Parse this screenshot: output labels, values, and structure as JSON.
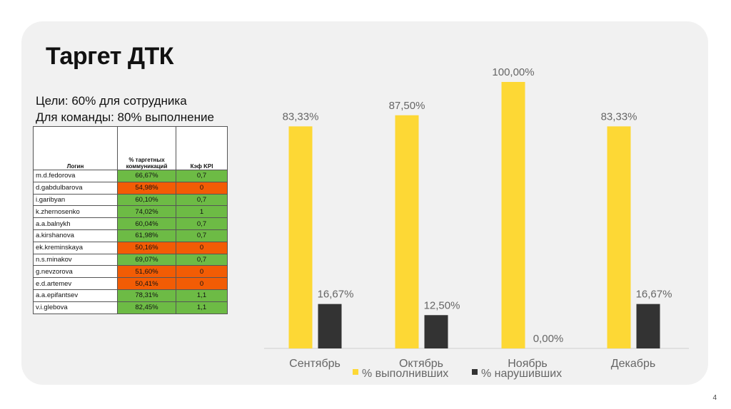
{
  "slide": {
    "title": "Таргет ДТК",
    "goal_line1": "Цели: 60% для сотрудника",
    "goal_line2": "Для команды: 80% выполнение",
    "page_number": "4"
  },
  "table": {
    "headers": [
      "Логин",
      "% таргетных коммуникаций",
      "Кэф KPI"
    ],
    "rows": [
      {
        "login": "m.d.fedorova",
        "pct": "66,67%",
        "kpi": "0,7",
        "status": "green"
      },
      {
        "login": "d.gabdulbarova",
        "pct": "54,98%",
        "kpi": "0",
        "status": "orange"
      },
      {
        "login": "i.garibyan",
        "pct": "60,10%",
        "kpi": "0,7",
        "status": "green"
      },
      {
        "login": "k.zhernosenko",
        "pct": "74,02%",
        "kpi": "1",
        "status": "green"
      },
      {
        "login": "a.a.balnykh",
        "pct": "60,04%",
        "kpi": "0,7",
        "status": "green"
      },
      {
        "login": "a.kirshanova",
        "pct": "61,98%",
        "kpi": "0,7",
        "status": "green"
      },
      {
        "login": "ek.kreminskaya",
        "pct": "50,16%",
        "kpi": "0",
        "status": "orange"
      },
      {
        "login": "n.s.minakov",
        "pct": "69,07%",
        "kpi": "0,7",
        "status": "green"
      },
      {
        "login": "g.nevzorova",
        "pct": "51,60%",
        "kpi": "0",
        "status": "orange"
      },
      {
        "login": "e.d.artemev",
        "pct": "50,41%",
        "kpi": "0",
        "status": "orange"
      },
      {
        "login": "a.a.epifantsev",
        "pct": "78,31%",
        "kpi": "1,1",
        "status": "green"
      },
      {
        "login": "v.i.glebova",
        "pct": "82,45%",
        "kpi": "1,1",
        "status": "green"
      }
    ]
  },
  "colors": {
    "completed": "#fdd835",
    "violated": "#333333",
    "green": "#6dbb45",
    "orange": "#f25c05"
  },
  "chart_data": {
    "type": "bar",
    "categories": [
      "Сентябрь",
      "Октябрь",
      "Ноябрь",
      "Декабрь"
    ],
    "series": [
      {
        "name": "% выполнивших",
        "values": [
          83.33,
          87.5,
          100.0,
          83.33
        ],
        "labels": [
          "83,33%",
          "87,50%",
          "100,00%",
          "83,33%"
        ]
      },
      {
        "name": "% нарушивших",
        "values": [
          16.67,
          12.5,
          0.0,
          16.67
        ],
        "labels": [
          "16,67%",
          "12,50%",
          "0,00%",
          "16,67%"
        ]
      }
    ],
    "ylim": [
      0,
      100
    ],
    "legend": "bottom",
    "grid": false
  }
}
